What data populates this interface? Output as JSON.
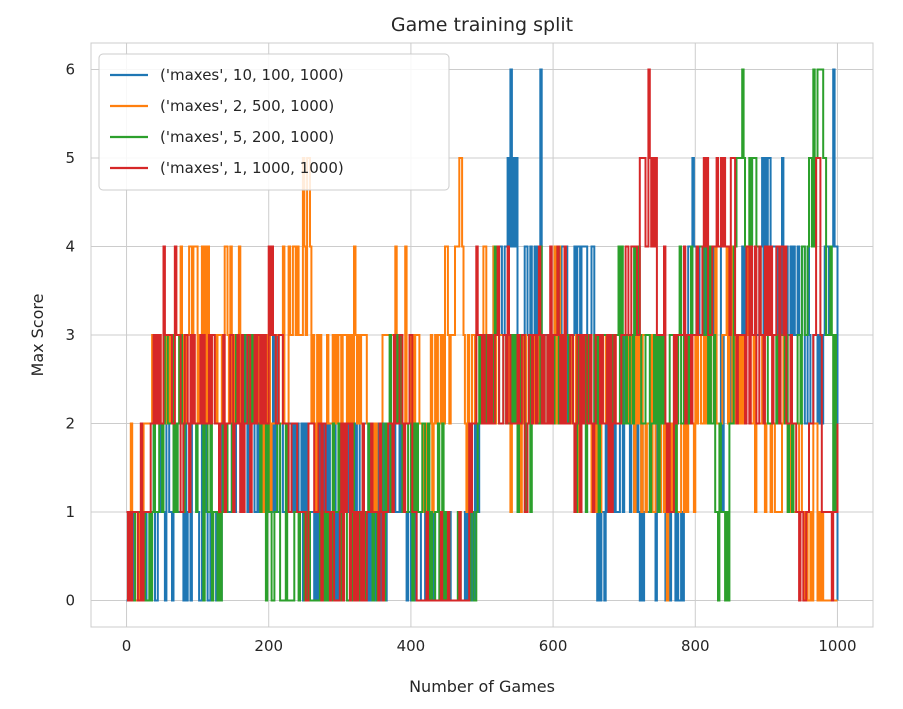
{
  "chart_data": {
    "type": "line",
    "title": "Game training split",
    "xlabel": "Number of Games",
    "ylabel": "Max Score",
    "xlim": [
      -50,
      1050
    ],
    "ylim": [
      -0.3,
      6.3
    ],
    "xticks": [
      0,
      200,
      400,
      600,
      800,
      1000
    ],
    "yticks": [
      0,
      1,
      2,
      3,
      4,
      5,
      6
    ],
    "grid": true,
    "legend_position": "upper-left",
    "series": [
      {
        "name": "('maxes', 10, 100, 1000)",
        "color": "#1f77b4",
        "description_points": [
          [
            0,
            0
          ],
          [
            60,
            1
          ],
          [
            120,
            1
          ],
          [
            180,
            2
          ],
          [
            250,
            1
          ],
          [
            320,
            1
          ],
          [
            380,
            1
          ],
          [
            430,
            0
          ],
          [
            480,
            0
          ],
          [
            500,
            2
          ],
          [
            548,
            5
          ],
          [
            552,
            2
          ],
          [
            575,
            4
          ],
          [
            578,
            5
          ],
          [
            582,
            5
          ],
          [
            585,
            2
          ],
          [
            600,
            3
          ],
          [
            655,
            4
          ],
          [
            660,
            1
          ],
          [
            700,
            2
          ],
          [
            780,
            0
          ],
          [
            790,
            4
          ],
          [
            830,
            3
          ],
          [
            840,
            2
          ],
          [
            880,
            4
          ],
          [
            940,
            4
          ],
          [
            960,
            3
          ],
          [
            975,
            2
          ],
          [
            995,
            5
          ],
          [
            1000,
            1
          ]
        ]
      },
      {
        "name": "('maxes', 2, 500, 1000)",
        "color": "#ff7f0e",
        "description_points": [
          [
            0,
            0
          ],
          [
            8,
            1
          ],
          [
            12,
            0
          ],
          [
            35,
            2
          ],
          [
            80,
            3
          ],
          [
            135,
            3
          ],
          [
            200,
            2
          ],
          [
            255,
            4
          ],
          [
            260,
            2
          ],
          [
            300,
            3
          ],
          [
            350,
            2
          ],
          [
            380,
            3
          ],
          [
            420,
            2
          ],
          [
            470,
            4
          ],
          [
            475,
            2
          ],
          [
            500,
            3
          ],
          [
            560,
            2
          ],
          [
            600,
            3
          ],
          [
            650,
            2
          ],
          [
            700,
            3
          ],
          [
            760,
            1
          ],
          [
            800,
            2
          ],
          [
            850,
            3
          ],
          [
            900,
            2
          ],
          [
            950,
            1
          ],
          [
            1000,
            0
          ]
        ]
      },
      {
        "name": "('maxes', 5, 200, 1000)",
        "color": "#2ca02c",
        "description_points": [
          [
            0,
            0
          ],
          [
            40,
            1
          ],
          [
            60,
            2
          ],
          [
            120,
            1
          ],
          [
            165,
            3
          ],
          [
            180,
            2
          ],
          [
            200,
            1
          ],
          [
            260,
            0
          ],
          [
            300,
            1
          ],
          [
            360,
            1
          ],
          [
            385,
            3
          ],
          [
            390,
            1
          ],
          [
            420,
            1
          ],
          [
            490,
            0
          ],
          [
            500,
            3
          ],
          [
            560,
            2
          ],
          [
            600,
            3
          ],
          [
            650,
            2
          ],
          [
            700,
            3
          ],
          [
            760,
            2
          ],
          [
            810,
            4
          ],
          [
            845,
            0
          ],
          [
            860,
            5
          ],
          [
            900,
            3
          ],
          [
            940,
            2
          ],
          [
            975,
            6
          ],
          [
            990,
            3
          ],
          [
            1000,
            1
          ]
        ]
      },
      {
        "name": "('maxes', 1, 1000, 1000)",
        "color": "#d62728",
        "description_points": [
          [
            0,
            0
          ],
          [
            20,
            1
          ],
          [
            55,
            3
          ],
          [
            80,
            2
          ],
          [
            120,
            2
          ],
          [
            165,
            2
          ],
          [
            200,
            3
          ],
          [
            240,
            1
          ],
          [
            300,
            1
          ],
          [
            350,
            1
          ],
          [
            400,
            2
          ],
          [
            410,
            0
          ],
          [
            480,
            0
          ],
          [
            490,
            3
          ],
          [
            500,
            2
          ],
          [
            520,
            3
          ],
          [
            560,
            2
          ],
          [
            600,
            3
          ],
          [
            660,
            2
          ],
          [
            700,
            3
          ],
          [
            740,
            5
          ],
          [
            760,
            2
          ],
          [
            800,
            3
          ],
          [
            820,
            4
          ],
          [
            840,
            5
          ],
          [
            860,
            3
          ],
          [
            900,
            3
          ],
          [
            930,
            3
          ],
          [
            955,
            0
          ],
          [
            970,
            5
          ],
          [
            985,
            0
          ],
          [
            1000,
            1
          ]
        ]
      }
    ]
  }
}
